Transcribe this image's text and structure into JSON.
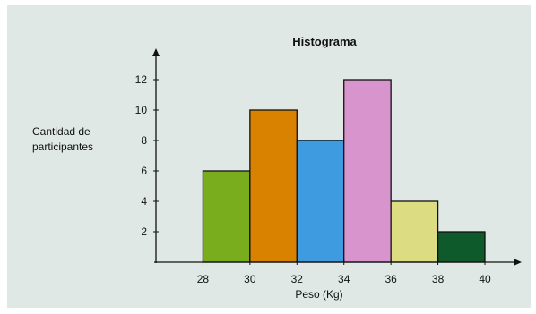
{
  "chart_data": {
    "type": "bar",
    "title": "Histograma",
    "xlabel": "Peso (Kg)",
    "ylabel_lines": [
      "Cantidad de",
      "participantes"
    ],
    "bins": [
      {
        "from": 28,
        "to": 30,
        "value": 6,
        "color": "#7aad1e"
      },
      {
        "from": 30,
        "to": 32,
        "value": 10,
        "color": "#d98200"
      },
      {
        "from": 32,
        "to": 34,
        "value": 8,
        "color": "#3f9be0"
      },
      {
        "from": 34,
        "to": 36,
        "value": 12,
        "color": "#d894cc"
      },
      {
        "from": 36,
        "to": 38,
        "value": 4,
        "color": "#dcdc82"
      },
      {
        "from": 38,
        "to": 40,
        "value": 2,
        "color": "#0f5a2a"
      }
    ],
    "x_ticks": [
      28,
      30,
      32,
      34,
      36,
      38,
      40
    ],
    "y_ticks": [
      2,
      4,
      6,
      8,
      10,
      12
    ],
    "xlim": [
      26,
      40
    ],
    "ylim": [
      0,
      12
    ],
    "grid": false
  }
}
